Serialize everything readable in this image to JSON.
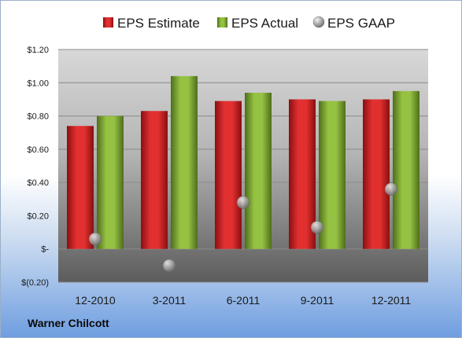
{
  "company": "Warner Chilcott",
  "colors": {
    "estimate": "#d42020",
    "actual": "#86b236",
    "gaap": "#a9a9a9"
  },
  "chart_data": {
    "type": "bar",
    "categories": [
      "12-2010",
      "3-2011",
      "6-2011",
      "9-2011",
      "12-2011"
    ],
    "series": [
      {
        "name": "EPS Estimate",
        "type": "bar",
        "values": [
          0.74,
          0.83,
          0.89,
          0.9,
          0.9
        ]
      },
      {
        "name": "EPS Actual",
        "type": "bar",
        "values": [
          0.8,
          1.04,
          0.94,
          0.89,
          0.95
        ]
      },
      {
        "name": "EPS GAAP",
        "type": "scatter",
        "values": [
          0.06,
          -0.1,
          0.28,
          0.13,
          0.36
        ]
      }
    ],
    "ylim": [
      -0.2,
      1.2
    ],
    "yticks": [
      {
        "value": 1.2,
        "label": "$1.20"
      },
      {
        "value": 1.0,
        "label": "$1.00"
      },
      {
        "value": 0.8,
        "label": "$0.80"
      },
      {
        "value": 0.6,
        "label": "$0.60"
      },
      {
        "value": 0.4,
        "label": "$0.40"
      },
      {
        "value": 0.2,
        "label": "$0.20"
      },
      {
        "value": 0.0,
        "label": "$-"
      },
      {
        "value": -0.2,
        "label": "$(0.20)"
      }
    ],
    "grid": true,
    "legend": "top"
  }
}
